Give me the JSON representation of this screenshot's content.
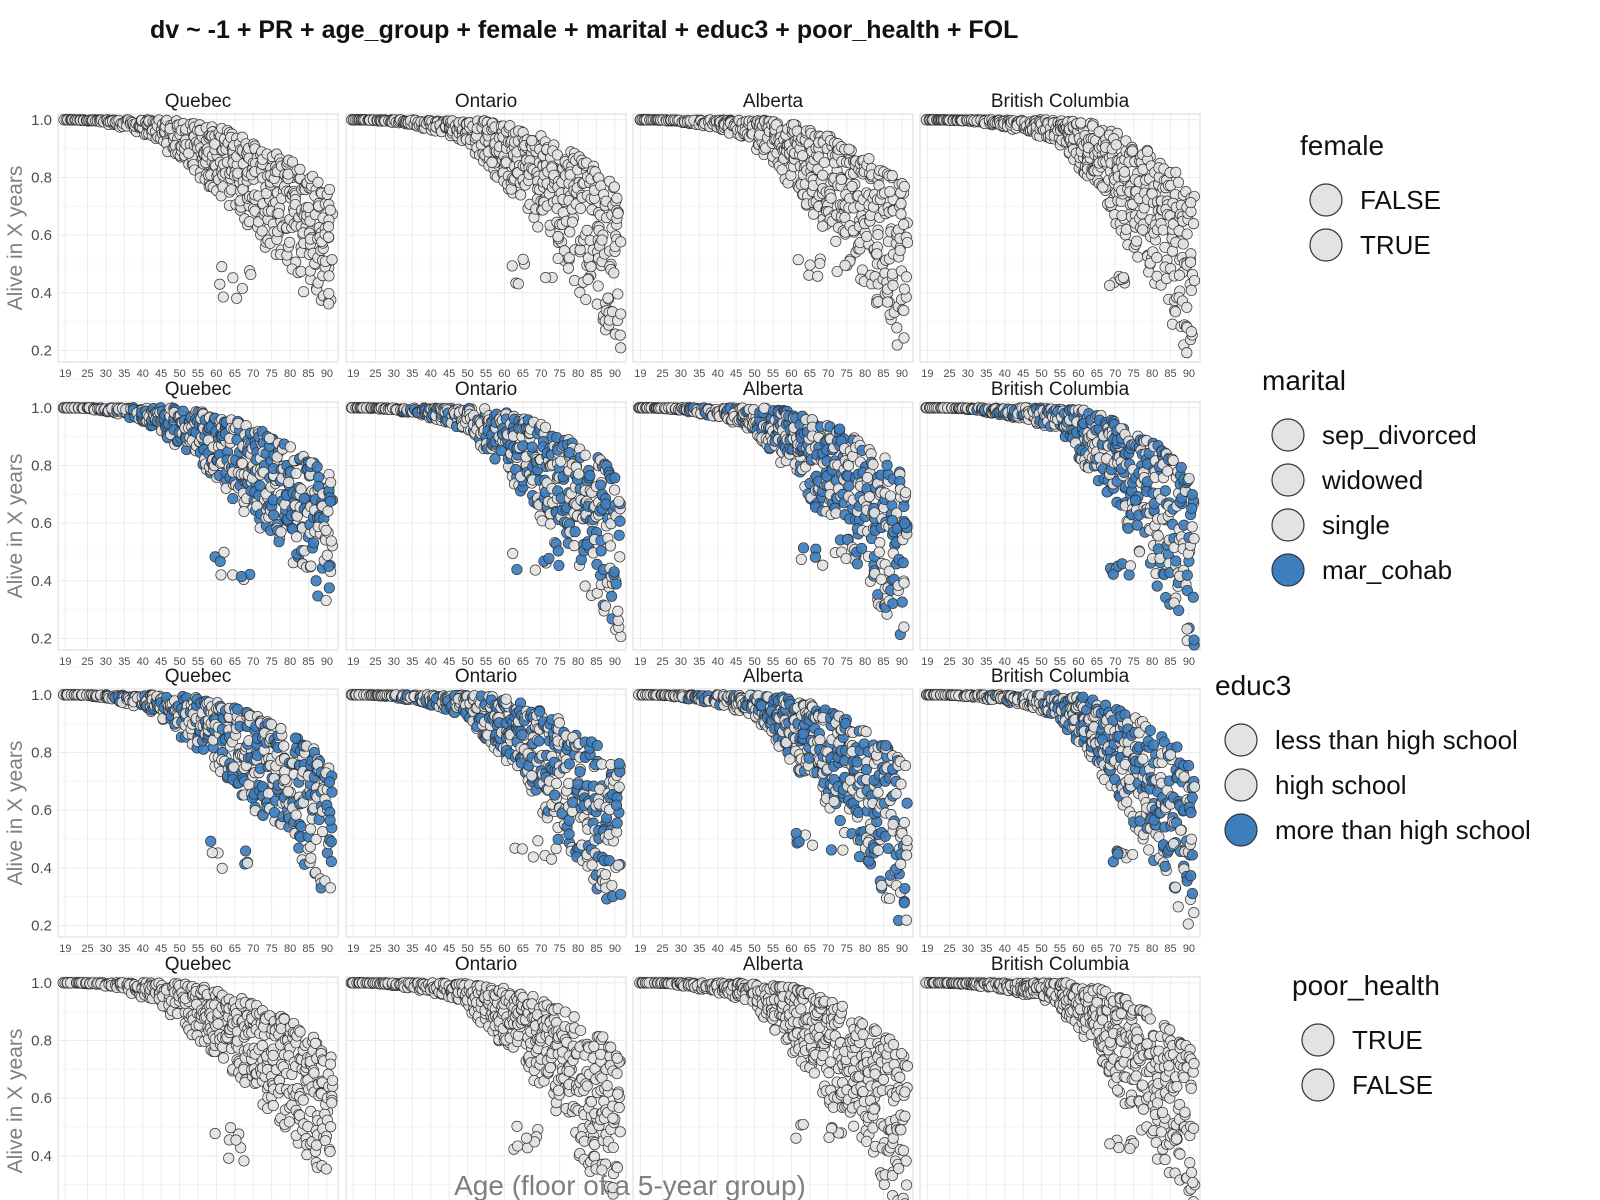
{
  "chart_data": {
    "type": "scatter",
    "title": "dv ~ -1 + PR + age_group + female + marital + educ3 + poor_health + FOL",
    "xlabel": "Age (floor of a 5-year group)",
    "ylabel": "Alive in X years",
    "facets": [
      "Quebec",
      "Ontario",
      "Alberta",
      "British Columbia"
    ],
    "x_ticks": [
      "19",
      "25",
      "30",
      "35",
      "40",
      "45",
      "50",
      "55",
      "60",
      "65",
      "70",
      "75",
      "80",
      "85",
      "90"
    ],
    "y_ticks": [
      "1.0",
      "0.8",
      "0.6",
      "0.4",
      "0.2"
    ],
    "ylim": [
      0.16,
      1.02
    ],
    "grid": true,
    "legend_position": "right",
    "marker_colors": {
      "grey": "#e3e3e3",
      "blue": "#3d7ebf",
      "outline": "#333333"
    },
    "rows": [
      {
        "variable": "female",
        "legend": [
          {
            "label": "FALSE",
            "color": "#e3e3e3"
          },
          {
            "label": "TRUE",
            "color": "#e3e3e3"
          }
        ],
        "blue_share": 0
      },
      {
        "variable": "marital",
        "legend": [
          {
            "label": "sep_divorced",
            "color": "#e3e3e3"
          },
          {
            "label": "widowed",
            "color": "#e3e3e3"
          },
          {
            "label": "single",
            "color": "#e3e3e3"
          },
          {
            "label": "mar_cohab",
            "color": "#3d7ebf"
          }
        ],
        "blue_share": 0.5
      },
      {
        "variable": "educ3",
        "legend": [
          {
            "label": "less than high school",
            "color": "#e3e3e3"
          },
          {
            "label": "high school",
            "color": "#e3e3e3"
          },
          {
            "label": "more than high school",
            "color": "#3d7ebf"
          }
        ],
        "blue_share": 0.5
      },
      {
        "variable": "poor_health",
        "legend": [
          {
            "label": "TRUE",
            "color": "#e3e3e3"
          },
          {
            "label": "FALSE",
            "color": "#e3e3e3"
          }
        ],
        "blue_share": 0
      }
    ],
    "note": "",
    "pattern": {
      "Quebec": {
        "plateau_end_age": 45,
        "min_y_at_90": 0.3,
        "spread": 0.55,
        "outlier_cluster": {
          "age": [
            58,
            70
          ],
          "y": [
            0.38,
            0.5
          ]
        }
      },
      "Ontario": {
        "plateau_end_age": 50,
        "min_y_at_90": 0.2,
        "spread": 0.6,
        "outlier_cluster": {
          "age": [
            62,
            75
          ],
          "y": [
            0.42,
            0.52
          ]
        }
      },
      "Alberta": {
        "plateau_end_age": 50,
        "min_y_at_90": 0.18,
        "spread": 0.6,
        "outlier_cluster": {
          "age": [
            60,
            75
          ],
          "y": [
            0.45,
            0.52
          ]
        }
      },
      "British Columbia": {
        "plateau_end_age": 55,
        "min_y_at_90": 0.17,
        "spread": 0.65,
        "outlier_cluster": {
          "age": [
            68,
            75
          ],
          "y": [
            0.42,
            0.46
          ]
        }
      }
    }
  }
}
